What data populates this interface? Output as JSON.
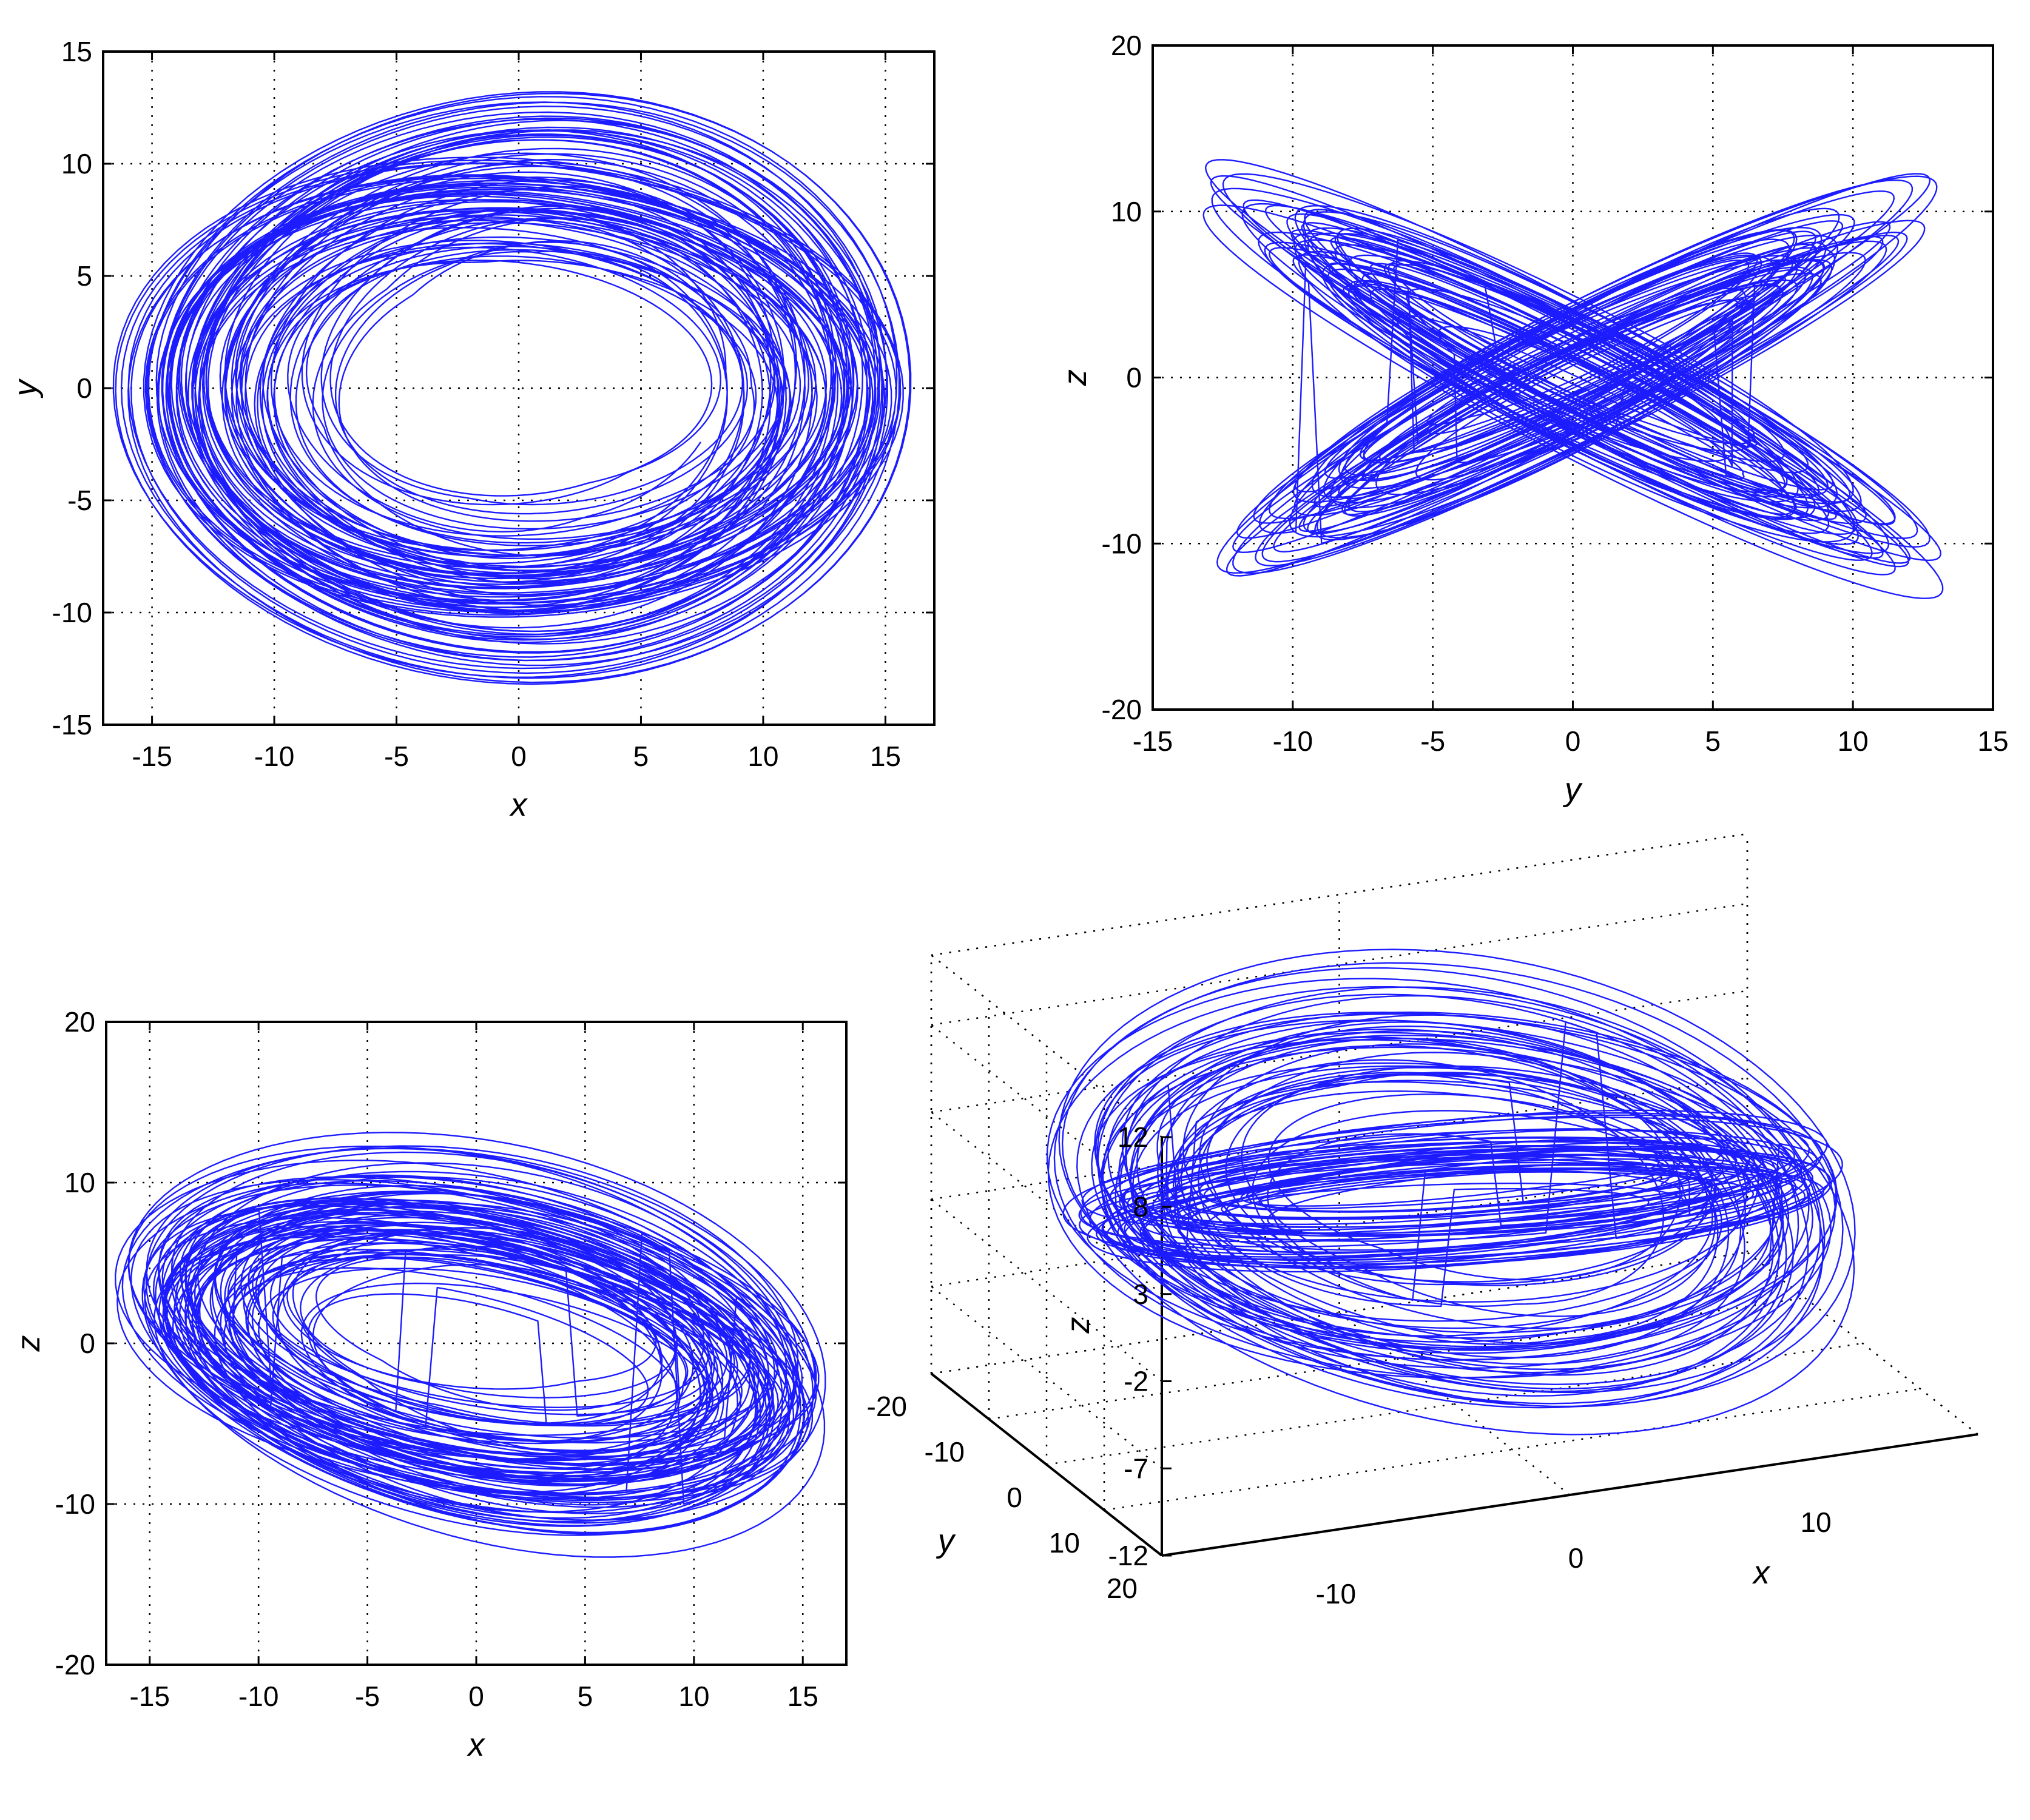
{
  "trace_color": "#1c1cff",
  "chart_data": [
    {
      "type": "line",
      "id": "xy",
      "xlabel": "x",
      "ylabel": "y",
      "xlim": [
        -17,
        17
      ],
      "ylim": [
        -15,
        15
      ],
      "xticks": [
        -15,
        -10,
        -5,
        0,
        5,
        10,
        15
      ],
      "yticks": [
        -15,
        -10,
        -5,
        0,
        5,
        10,
        15
      ],
      "grid": true,
      "series": [
        {
          "x_var": "x",
          "y_var": "y"
        }
      ]
    },
    {
      "type": "line",
      "id": "yz",
      "xlabel": "y",
      "ylabel": "z",
      "xlim": [
        -15,
        15
      ],
      "ylim": [
        -20,
        20
      ],
      "xticks": [
        -15,
        -10,
        -5,
        0,
        5,
        10,
        15
      ],
      "yticks": [
        -20,
        -10,
        0,
        10,
        20
      ],
      "grid": true,
      "series": [
        {
          "x_var": "y",
          "y_var": "z"
        }
      ]
    },
    {
      "type": "line",
      "id": "xz",
      "xlabel": "x",
      "ylabel": "z",
      "xlim": [
        -17,
        17
      ],
      "ylim": [
        -20,
        20
      ],
      "xticks": [
        -15,
        -10,
        -5,
        0,
        5,
        10,
        15
      ],
      "yticks": [
        -20,
        -10,
        0,
        10,
        20
      ],
      "grid": true,
      "series": [
        {
          "x_var": "x",
          "y_var": "z"
        }
      ]
    },
    {
      "type": "line",
      "id": "xyz",
      "projection": "3d",
      "xlabel": "x",
      "ylabel": "y",
      "zlabel": "z",
      "xlim": [
        -17,
        17
      ],
      "ylim": [
        -20,
        20
      ],
      "zlim": [
        -12,
        12
      ],
      "xticks": [
        -10,
        0,
        10
      ],
      "yticks": [
        -20,
        -10,
        0,
        10,
        20
      ],
      "zticks": [
        -12,
        -7,
        -2,
        3,
        8,
        12
      ],
      "grid": true,
      "series": [
        {
          "x_var": "x",
          "y_var": "y",
          "z_var": "z"
        }
      ]
    }
  ]
}
